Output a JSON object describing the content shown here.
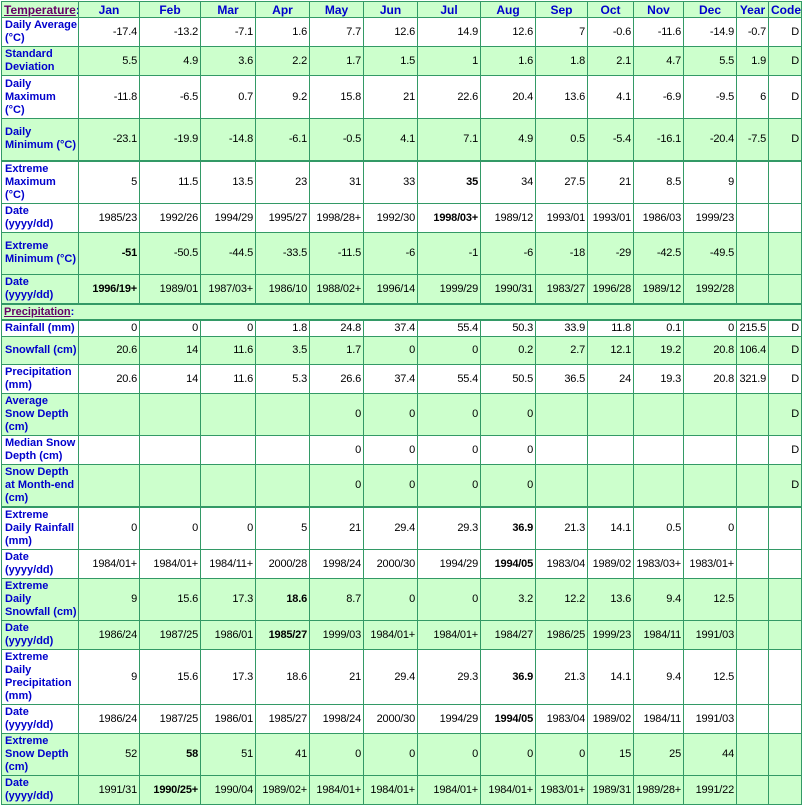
{
  "header": {
    "section": "Temperature",
    "colon": ":",
    "columns": [
      "Jan",
      "Feb",
      "Mar",
      "Apr",
      "May",
      "Jun",
      "Jul",
      "Aug",
      "Sep",
      "Oct",
      "Nov",
      "Dec",
      "Year",
      "Code"
    ]
  },
  "colors": {
    "header_bg": "#ccffcc",
    "label_text": "#0000cc",
    "border": "#339966",
    "section_link": "#660066"
  },
  "temperature": [
    {
      "label": "Daily Average (°C)",
      "shaded": false,
      "values": [
        "-17.4",
        "-13.2",
        "-7.1",
        "1.6",
        "7.7",
        "12.6",
        "14.9",
        "12.6",
        "7",
        "-0.6",
        "-11.6",
        "-14.9",
        "-0.7",
        "D"
      ],
      "bold": []
    },
    {
      "label": "Standard Deviation",
      "shaded": true,
      "values": [
        "5.5",
        "4.9",
        "3.6",
        "2.2",
        "1.7",
        "1.5",
        "1",
        "1.6",
        "1.8",
        "2.1",
        "4.7",
        "5.5",
        "1.9",
        "D"
      ],
      "bold": []
    },
    {
      "label": "Daily Maximum (°C)",
      "shaded": false,
      "values": [
        "-11.8",
        "-6.5",
        "0.7",
        "9.2",
        "15.8",
        "21",
        "22.6",
        "20.4",
        "13.6",
        "4.1",
        "-6.9",
        "-9.5",
        "6",
        "D"
      ],
      "bold": []
    },
    {
      "label": "Daily Minimum (°C)",
      "shaded": true,
      "values": [
        "-23.1",
        "-19.9",
        "-14.8",
        "-6.1",
        "-0.5",
        "4.1",
        "7.1",
        "4.9",
        "0.5",
        "-5.4",
        "-16.1",
        "-20.4",
        "-7.5",
        "D"
      ],
      "bold": []
    },
    {
      "label": "Extreme Maximum (°C)",
      "shaded": false,
      "top": true,
      "values": [
        "5",
        "11.5",
        "13.5",
        "23",
        "31",
        "33",
        "35",
        "34",
        "27.5",
        "21",
        "8.5",
        "9",
        "",
        ""
      ],
      "bold": [
        6
      ]
    },
    {
      "label": "Date (yyyy/dd)",
      "shaded": false,
      "values": [
        "1985/23",
        "1992/26",
        "1994/29",
        "1995/27",
        "1998/28+",
        "1992/30",
        "1998/03+",
        "1989/12",
        "1993/01",
        "1993/01",
        "1986/03",
        "1999/23",
        "",
        ""
      ],
      "bold": [
        6
      ]
    },
    {
      "label": "Extreme Minimum (°C)",
      "shaded": true,
      "values": [
        "-51",
        "-50.5",
        "-44.5",
        "-33.5",
        "-11.5",
        "-6",
        "-1",
        "-6",
        "-18",
        "-29",
        "-42.5",
        "-49.5",
        "",
        ""
      ],
      "bold": [
        0
      ]
    },
    {
      "label": "Date (yyyy/dd)",
      "shaded": true,
      "values": [
        "1996/19+",
        "1989/01",
        "1987/03+",
        "1986/10",
        "1988/02+",
        "1996/14",
        "1999/29",
        "1990/31",
        "1983/27",
        "1996/28",
        "1989/12",
        "1992/28",
        "",
        ""
      ],
      "bold": [
        0
      ]
    }
  ],
  "precipitation_section": {
    "label": "Precipitation",
    "colon": ":"
  },
  "precipitation": [
    {
      "label": "Rainfall (mm)",
      "shaded": false,
      "top": true,
      "values": [
        "0",
        "0",
        "0",
        "1.8",
        "24.8",
        "37.4",
        "55.4",
        "50.3",
        "33.9",
        "11.8",
        "0.1",
        "0",
        "215.5",
        "D"
      ],
      "bold": []
    },
    {
      "label": "Snowfall (cm)",
      "shaded": true,
      "values": [
        "20.6",
        "14",
        "11.6",
        "3.5",
        "1.7",
        "0",
        "0",
        "0.2",
        "2.7",
        "12.1",
        "19.2",
        "20.8",
        "106.4",
        "D"
      ],
      "bold": []
    },
    {
      "label": "Precipitation (mm)",
      "shaded": false,
      "values": [
        "20.6",
        "14",
        "11.6",
        "5.3",
        "26.6",
        "37.4",
        "55.4",
        "50.5",
        "36.5",
        "24",
        "19.3",
        "20.8",
        "321.9",
        "D"
      ],
      "bold": []
    },
    {
      "label": "Average Snow Depth (cm)",
      "shaded": true,
      "values": [
        "",
        "",
        "",
        "",
        "0",
        "0",
        "0",
        "0",
        "",
        "",
        "",
        "",
        "",
        "D"
      ],
      "bold": []
    },
    {
      "label": "Median Snow Depth (cm)",
      "shaded": false,
      "values": [
        "",
        "",
        "",
        "",
        "0",
        "0",
        "0",
        "0",
        "",
        "",
        "",
        "",
        "",
        "D"
      ],
      "bold": []
    },
    {
      "label": "Snow Depth at Month-end (cm)",
      "shaded": true,
      "values": [
        "",
        "",
        "",
        "",
        "0",
        "0",
        "0",
        "0",
        "",
        "",
        "",
        "",
        "",
        "D"
      ],
      "bold": []
    },
    {
      "label": "Extreme Daily Rainfall (mm)",
      "shaded": false,
      "top": true,
      "values": [
        "0",
        "0",
        "0",
        "5",
        "21",
        "29.4",
        "29.3",
        "36.9",
        "21.3",
        "14.1",
        "0.5",
        "0",
        "",
        ""
      ],
      "bold": [
        7
      ]
    },
    {
      "label": "Date (yyyy/dd)",
      "shaded": false,
      "values": [
        "1984/01+",
        "1984/01+",
        "1984/11+",
        "2000/28",
        "1998/24",
        "2000/30",
        "1994/29",
        "1994/05",
        "1983/04",
        "1989/02",
        "1983/03+",
        "1983/01+",
        "",
        ""
      ],
      "bold": [
        7
      ]
    },
    {
      "label": "Extreme Daily Snowfall (cm)",
      "shaded": true,
      "values": [
        "9",
        "15.6",
        "17.3",
        "18.6",
        "8.7",
        "0",
        "0",
        "3.2",
        "12.2",
        "13.6",
        "9.4",
        "12.5",
        "",
        ""
      ],
      "bold": [
        3
      ]
    },
    {
      "label": "Date (yyyy/dd)",
      "shaded": true,
      "values": [
        "1986/24",
        "1987/25",
        "1986/01",
        "1985/27",
        "1999/03",
        "1984/01+",
        "1984/01+",
        "1984/27",
        "1986/25",
        "1999/23",
        "1984/11",
        "1991/03",
        "",
        ""
      ],
      "bold": [
        3
      ]
    },
    {
      "label": "Extreme Daily Precipitation (mm)",
      "shaded": false,
      "values": [
        "9",
        "15.6",
        "17.3",
        "18.6",
        "21",
        "29.4",
        "29.3",
        "36.9",
        "21.3",
        "14.1",
        "9.4",
        "12.5",
        "",
        ""
      ],
      "bold": [
        7
      ]
    },
    {
      "label": "Date (yyyy/dd)",
      "shaded": false,
      "values": [
        "1986/24",
        "1987/25",
        "1986/01",
        "1985/27",
        "1998/24",
        "2000/30",
        "1994/29",
        "1994/05",
        "1983/04",
        "1989/02",
        "1984/11",
        "1991/03",
        "",
        ""
      ],
      "bold": [
        7
      ]
    },
    {
      "label": "Extreme Snow Depth (cm)",
      "shaded": true,
      "values": [
        "52",
        "58",
        "51",
        "41",
        "0",
        "0",
        "0",
        "0",
        "0",
        "15",
        "25",
        "44",
        "",
        ""
      ],
      "bold": [
        1
      ]
    },
    {
      "label": "Date (yyyy/dd)",
      "shaded": true,
      "values": [
        "1991/31",
        "1990/25+",
        "1990/04",
        "1989/02+",
        "1984/01+",
        "1984/01+",
        "1984/01+",
        "1984/01+",
        "1983/01+",
        "1989/31",
        "1989/28+",
        "1991/22",
        "",
        ""
      ],
      "bold": [
        1
      ]
    }
  ]
}
